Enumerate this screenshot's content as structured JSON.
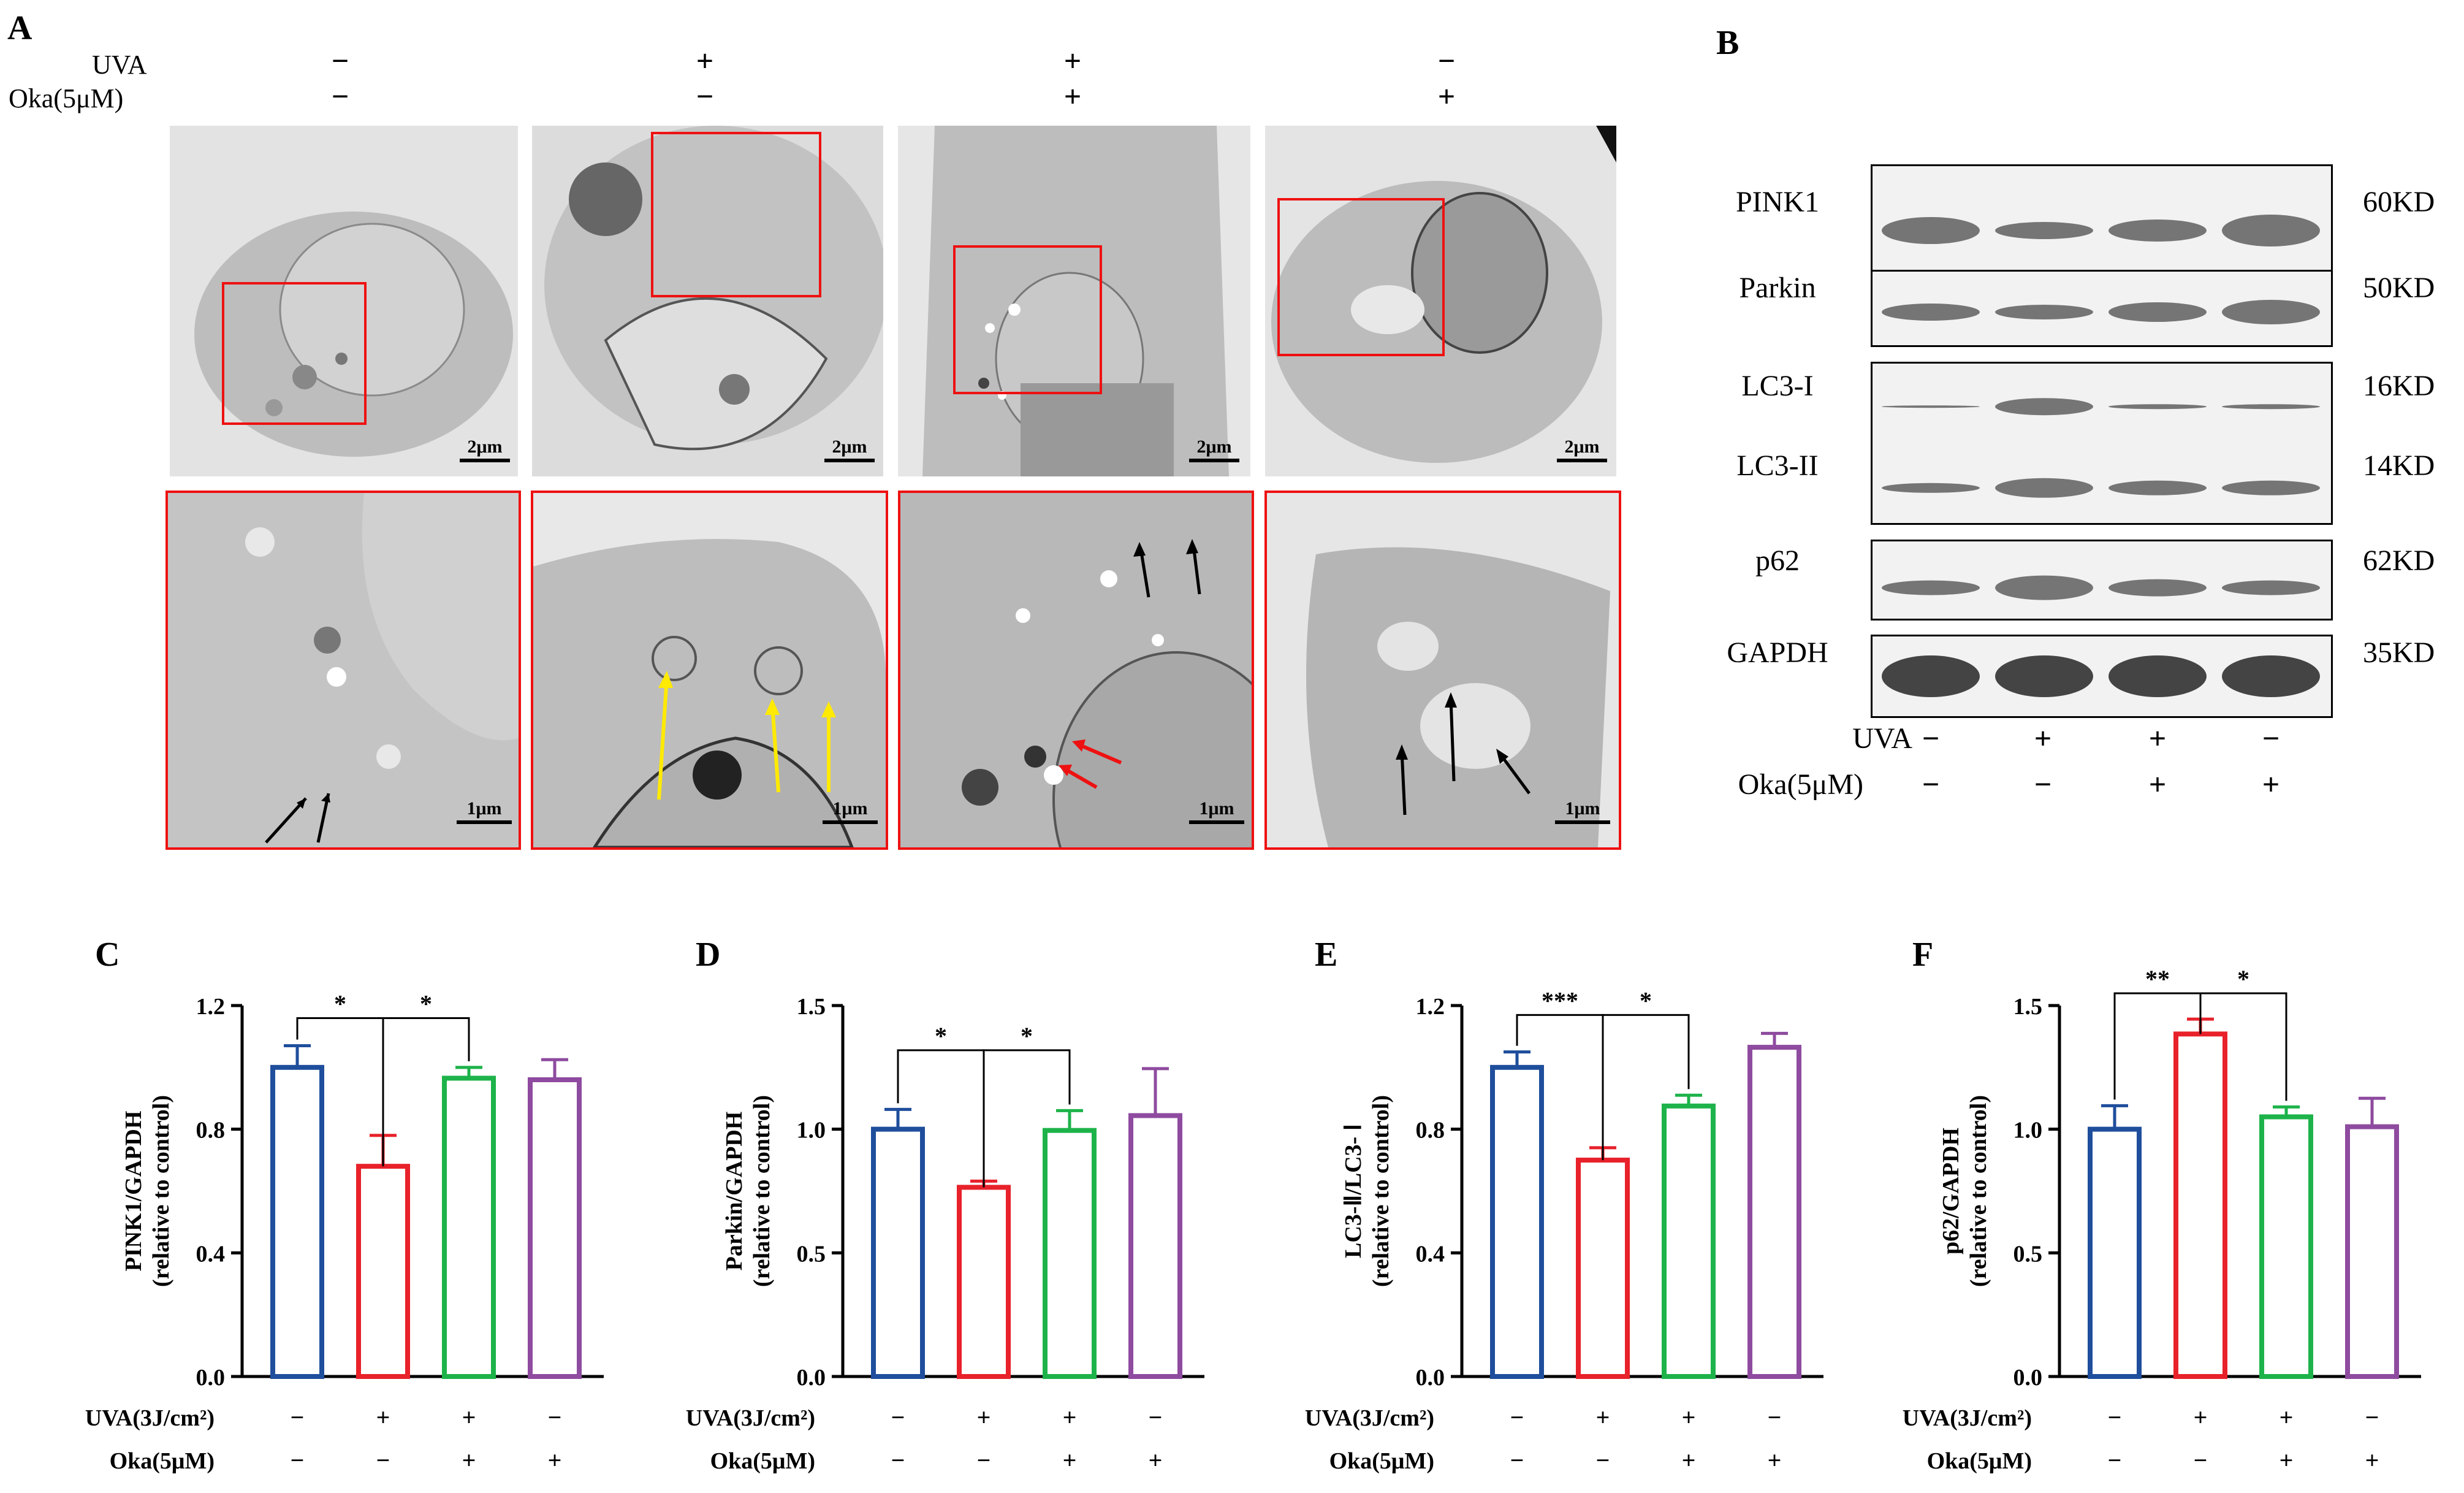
{
  "panelA": {
    "label": "A",
    "rows": [
      {
        "name": "UVA",
        "signs": [
          "−",
          "+",
          "+",
          "−"
        ]
      },
      {
        "name": "Oka(5μM)",
        "signs": [
          "−",
          "−",
          "+",
          "+"
        ]
      }
    ],
    "scale_top": "2μm",
    "scale_bottom": "1μm"
  },
  "panelB": {
    "label": "B",
    "blots": [
      {
        "name": "PINK1",
        "kd": "60KD"
      },
      {
        "name": "Parkin",
        "kd": "50KD"
      },
      {
        "name": "LC3-I",
        "kd": "16KD"
      },
      {
        "name": "LC3-II",
        "kd": "14KD"
      },
      {
        "name": "p62",
        "kd": "62KD"
      },
      {
        "name": "GAPDH",
        "kd": "35KD"
      }
    ],
    "conditions": [
      {
        "name": "UVA",
        "signs": [
          "−",
          "+",
          "+",
          "−"
        ]
      },
      {
        "name": "Oka(5μM)",
        "signs": [
          "−",
          "−",
          "+",
          "+"
        ]
      }
    ]
  },
  "conditions_x": [
    {
      "name": "UVA(3J/cm²)",
      "signs": [
        "−",
        "+",
        "+",
        "−"
      ]
    },
    {
      "name": "Oka(5μM)",
      "signs": [
        "−",
        "−",
        "+",
        "+"
      ]
    }
  ],
  "colors": {
    "bars": [
      "#1f4e9c",
      "#e8212a",
      "#1db34a",
      "#8e4b9f"
    ]
  },
  "chart_data": [
    {
      "panel": "C",
      "type": "bar",
      "ylabel": "PINK1/GAPDH",
      "ylabel2": "(relative to control)",
      "ylim": [
        0,
        1.2
      ],
      "yticks": [
        "0.0",
        "0.4",
        "0.8",
        "1.2"
      ],
      "ytickvals": [
        0,
        0.4,
        0.8,
        1.2
      ],
      "values": [
        1.0,
        0.68,
        0.965,
        0.96
      ],
      "errors": [
        0.07,
        0.1,
        0.035,
        0.065
      ],
      "sig": [
        {
          "from": 0,
          "to": 1,
          "label": "*"
        },
        {
          "from": 1,
          "to": 2,
          "label": "*"
        }
      ]
    },
    {
      "panel": "D",
      "type": "bar",
      "ylabel": "Parkin/GAPDH",
      "ylabel2": "(relative to control)",
      "ylim": [
        0,
        1.5
      ],
      "yticks": [
        "0.0",
        "0.5",
        "1.0",
        "1.5"
      ],
      "ytickvals": [
        0,
        0.5,
        1.0,
        1.5
      ],
      "values": [
        1.0,
        0.765,
        0.995,
        1.055
      ],
      "errors": [
        0.08,
        0.025,
        0.08,
        0.19
      ],
      "sig": [
        {
          "from": 0,
          "to": 1,
          "label": "*"
        },
        {
          "from": 1,
          "to": 2,
          "label": "*"
        }
      ]
    },
    {
      "panel": "E",
      "type": "bar",
      "ylabel": "LC3-Ⅱ/LC3- Ⅰ",
      "ylabel2": "(relative to control)",
      "ylim": [
        0,
        1.2
      ],
      "yticks": [
        "0.0",
        "0.4",
        "0.8",
        "1.2"
      ],
      "ytickvals": [
        0,
        0.4,
        0.8,
        1.2
      ],
      "values": [
        1.0,
        0.7,
        0.875,
        1.065
      ],
      "errors": [
        0.05,
        0.04,
        0.035,
        0.045
      ],
      "sig": [
        {
          "from": 0,
          "to": 1,
          "label": "***"
        },
        {
          "from": 1,
          "to": 2,
          "label": "*"
        }
      ]
    },
    {
      "panel": "F",
      "type": "bar",
      "ylabel": "p62/GAPDH",
      "ylabel2": "(relative to control)",
      "ylim": [
        0,
        1.5
      ],
      "yticks": [
        "0.0",
        "0.5",
        "1.0",
        "1.5"
      ],
      "ytickvals": [
        0,
        0.5,
        1.0,
        1.5
      ],
      "values": [
        1.0,
        1.385,
        1.05,
        1.01
      ],
      "errors": [
        0.095,
        0.06,
        0.04,
        0.115
      ],
      "sig": [
        {
          "from": 0,
          "to": 1,
          "label": "**"
        },
        {
          "from": 1,
          "to": 2,
          "label": "*"
        }
      ]
    }
  ]
}
